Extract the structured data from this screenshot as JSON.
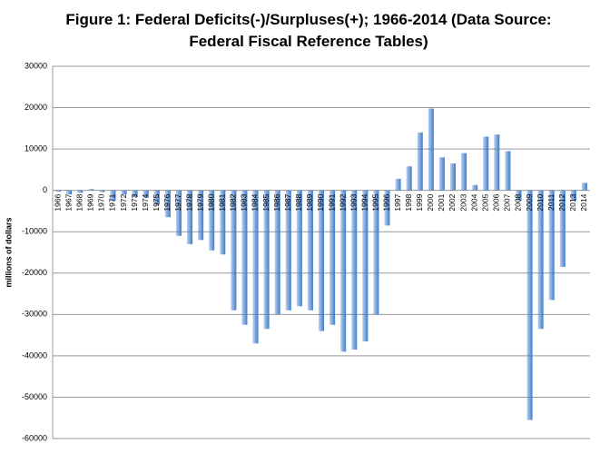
{
  "chart_data": {
    "type": "bar",
    "title": "Figure 1: Federal Deficits(-)/Surpluses(+); 1966-2014 (Data Source: Federal Fiscal Reference Tables)",
    "y_label": "millions of dollars",
    "categories": [
      "1966",
      "1967",
      "1968",
      "1969",
      "1970",
      "1971",
      "1972",
      "1973",
      "1974",
      "1975",
      "1976",
      "1977",
      "1978",
      "1979",
      "1980",
      "1981",
      "1982",
      "1983",
      "1984",
      "1985",
      "1986",
      "1987",
      "1988",
      "1989",
      "1990",
      "1991",
      "1992",
      "1993",
      "1994",
      "1995",
      "1996",
      "1997",
      "1998",
      "1999",
      "2000",
      "2001",
      "2002",
      "2003",
      "2004",
      "2005",
      "2006",
      "2007",
      "2008",
      "2009",
      "2010",
      "2011",
      "2012",
      "2013",
      "2014"
    ],
    "values": [
      -300,
      -1000,
      -600,
      300,
      -400,
      -2500,
      -1000,
      -1600,
      -1800,
      -3500,
      -6500,
      -11000,
      -13000,
      -12000,
      -14500,
      -15500,
      -29000,
      -32500,
      -37000,
      -33500,
      -30000,
      -29000,
      -28000,
      -29000,
      -34000,
      -32500,
      -39000,
      -38500,
      -36500,
      -30000,
      -8500,
      2800,
      5800,
      14000,
      19800,
      8000,
      6500,
      9000,
      1300,
      13000,
      13500,
      9500,
      -2500,
      -55500,
      -33500,
      -26500,
      -18500,
      -2500,
      1800
    ],
    "color": "#3f7ccc",
    "ylim": [
      -60000,
      30000
    ],
    "yticks": [
      -60000,
      -50000,
      -40000,
      -30000,
      -20000,
      -10000,
      0,
      10000,
      20000,
      30000
    ],
    "grid": true
  }
}
